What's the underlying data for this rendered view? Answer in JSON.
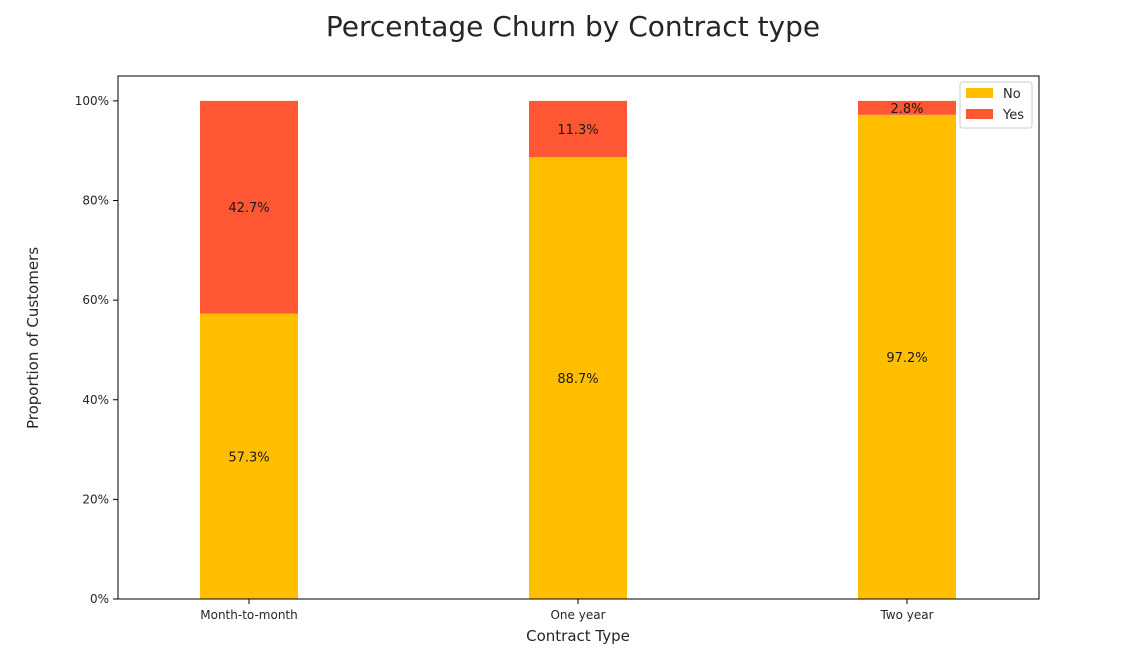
{
  "chart_data": {
    "type": "bar",
    "stacked": true,
    "title": "Percentage Churn by Contract type",
    "xlabel": "Contract Type",
    "ylabel": "Proportion of Customers",
    "categories": [
      "Month-to-month",
      "One year",
      "Two year"
    ],
    "series": [
      {
        "name": "No",
        "color": "#FFBF00",
        "values": [
          57.3,
          88.7,
          97.2
        ],
        "labels": [
          "57.3%",
          "88.7%",
          "97.2%"
        ]
      },
      {
        "name": "Yes",
        "color": "#FF5733",
        "values": [
          42.7,
          11.3,
          2.8
        ],
        "labels": [
          "42.7%",
          "11.3%",
          "2.8%"
        ]
      }
    ],
    "ylim": [
      0,
      105
    ],
    "yticks": [
      0,
      20,
      40,
      60,
      80,
      100
    ],
    "ytick_labels": [
      "0%",
      "20%",
      "40%",
      "60%",
      "80%",
      "100%"
    ],
    "grid": false,
    "legend_position": "top-right"
  }
}
